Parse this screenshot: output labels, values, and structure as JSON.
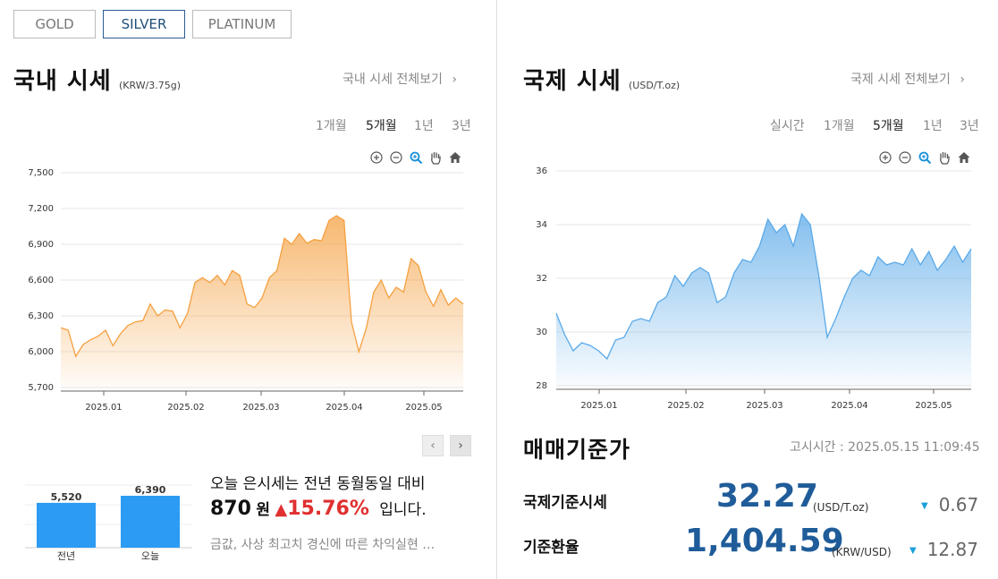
{
  "metal_tabs": [
    {
      "label": "GOLD",
      "active": false
    },
    {
      "label": "SILVER",
      "active": true
    },
    {
      "label": "PLATINUM",
      "active": false
    }
  ],
  "domestic": {
    "title": "국내 시세",
    "unit": "(KRW/3.75g)",
    "more": "국내 시세 전체보기",
    "periods": [
      "1개월",
      "5개월",
      "1년",
      "3년"
    ],
    "active_period": "5개월"
  },
  "international": {
    "title": "국제 시세",
    "unit": "(USD/T.oz)",
    "more": "국제 시세 전체보기",
    "periods": [
      "실시간",
      "1개월",
      "5개월",
      "1년",
      "3년"
    ],
    "active_period": "5개월"
  },
  "chart_data": [
    {
      "type": "area",
      "y_ticks": [
        "7,500",
        "7,200",
        "6,900",
        "6,600",
        "6,300",
        "6,000",
        "5,700"
      ],
      "ylim": [
        5700,
        7500
      ],
      "x_ticks": [
        "2025.01",
        "2025.02",
        "2025.03",
        "2025.04",
        "2025.05"
      ],
      "color": "#f5a040",
      "series": [
        {
          "values": [
            6200,
            6180,
            5960,
            6060,
            6100,
            6130,
            6180,
            6050,
            6150,
            6220,
            6250,
            6260,
            6400,
            6300,
            6350,
            6340,
            6200,
            6320,
            6580,
            6620,
            6580,
            6640,
            6560,
            6680,
            6640,
            6400,
            6370,
            6450,
            6620,
            6680,
            6950,
            6900,
            6990,
            6910,
            6940,
            6930,
            7100,
            7140,
            7100,
            6250,
            6000,
            6200,
            6500,
            6600,
            6450,
            6540,
            6500,
            6780,
            6720,
            6500,
            6380,
            6520,
            6390,
            6450,
            6400
          ]
        }
      ]
    },
    {
      "type": "area",
      "y_ticks": [
        "36",
        "34",
        "32",
        "30",
        "28"
      ],
      "ylim": [
        28,
        36
      ],
      "x_ticks": [
        "2025.01",
        "2025.02",
        "2025.03",
        "2025.04",
        "2025.05"
      ],
      "color": "#5aa9e8",
      "series": [
        {
          "values": [
            30.7,
            29.9,
            29.3,
            29.6,
            29.5,
            29.3,
            29.0,
            29.7,
            29.8,
            30.4,
            30.5,
            30.4,
            31.1,
            31.3,
            32.1,
            31.7,
            32.2,
            32.4,
            32.2,
            31.1,
            31.3,
            32.2,
            32.7,
            32.6,
            33.2,
            34.2,
            33.7,
            34.0,
            33.2,
            34.4,
            34.0,
            32.1,
            29.8,
            30.5,
            31.3,
            32.0,
            32.3,
            32.1,
            32.8,
            32.5,
            32.6,
            32.5,
            33.1,
            32.5,
            33.0,
            32.3,
            32.7,
            33.2,
            32.6,
            33.1
          ]
        }
      ]
    },
    {
      "type": "bar",
      "categories": [
        "전년",
        "오늘"
      ],
      "values": [
        5520,
        6390
      ],
      "data_labels": [
        "5,520",
        "6,390"
      ],
      "color": "#2b9bf4"
    }
  ],
  "chart_tools": [
    "zoom-in-icon",
    "zoom-out-icon",
    "magnify-icon",
    "pan-hand-icon",
    "home-icon"
  ],
  "comparison": {
    "line1": "오늘 은시세는 전년 동월동일 대비",
    "diff": "870",
    "diff_unit": "원",
    "arrow": "▲",
    "percent": "15.76%",
    "suffix": "입니다.",
    "news": "금값, 사상 최고치 경신에 따른 차익실현 …"
  },
  "reference": {
    "title": "매매기준가",
    "notice": "고시시간 : 2025.05.15 11:09:45",
    "rows": [
      {
        "label": "국제기준시세",
        "value": "32.27",
        "unit": "(USD/T.oz)",
        "change": "0.67",
        "dir": "down"
      },
      {
        "label": "기준환율",
        "value": "1,404.59",
        "unit": "(KRW/USD)",
        "change": "12.87",
        "dir": "down"
      }
    ]
  },
  "pager": {
    "prev": "‹",
    "next": "›"
  }
}
